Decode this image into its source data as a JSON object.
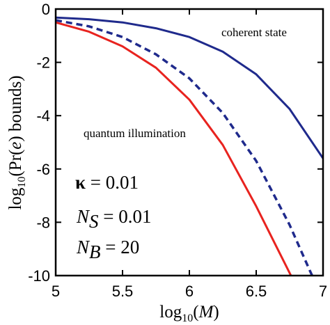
{
  "chart_data": {
    "type": "line",
    "xlabel": {
      "prefix": "log",
      "sub": "10",
      "open": "(",
      "var": "M",
      "close": ")"
    },
    "ylabel": {
      "prefix": "log",
      "sub": "10",
      "rest": "(Pr(",
      "var": "e",
      "tail": ") bounds)"
    },
    "xlim": [
      5,
      7
    ],
    "ylim": [
      -10,
      0
    ],
    "xticks": [
      5,
      5.5,
      6,
      6.5,
      7
    ],
    "xtick_labels": [
      "5",
      "5.5",
      "6",
      "6.5",
      "7"
    ],
    "yticks": [
      0,
      -2,
      -4,
      -6,
      -8,
      -10
    ],
    "ytick_labels": [
      "0",
      "-2",
      "-4",
      "-6",
      "-8",
      "-10"
    ],
    "grid": false,
    "legend": "none",
    "series": [
      {
        "name": "coherent state",
        "color": "#1f2a8c",
        "style": "solid",
        "x": [
          5.0,
          5.25,
          5.5,
          5.75,
          6.0,
          6.25,
          6.5,
          6.75,
          7.0
        ],
        "y": [
          -0.32,
          -0.38,
          -0.5,
          -0.72,
          -1.05,
          -1.6,
          -2.45,
          -3.75,
          -5.6
        ]
      },
      {
        "name": "",
        "color": "#1f2a8c",
        "style": "dashed",
        "x": [
          5.0,
          5.25,
          5.5,
          5.75,
          6.0,
          6.25,
          6.5,
          6.75,
          6.9,
          7.0
        ],
        "y": [
          -0.42,
          -0.65,
          -1.05,
          -1.7,
          -2.6,
          -3.9,
          -5.7,
          -8.1,
          -9.8,
          -10.9
        ]
      },
      {
        "name": "quantum illumination",
        "color": "#e8231f",
        "style": "solid",
        "x": [
          5.0,
          5.25,
          5.5,
          5.75,
          6.0,
          6.25,
          6.5,
          6.65,
          6.76
        ],
        "y": [
          -0.5,
          -0.85,
          -1.4,
          -2.2,
          -3.4,
          -5.1,
          -7.4,
          -8.9,
          -10.0
        ]
      }
    ],
    "annotations": {
      "coherent_label": "coherent state",
      "quantum_label": "quantum illumination"
    },
    "parameters": {
      "kappa_symbol": "κ",
      "kappa_value": " = 0.01",
      "ns_symbol": "N",
      "ns_sub": "S",
      "ns_value": " = 0.01",
      "nb_symbol": "N",
      "nb_sub": "B",
      "nb_value": " = 20"
    }
  }
}
